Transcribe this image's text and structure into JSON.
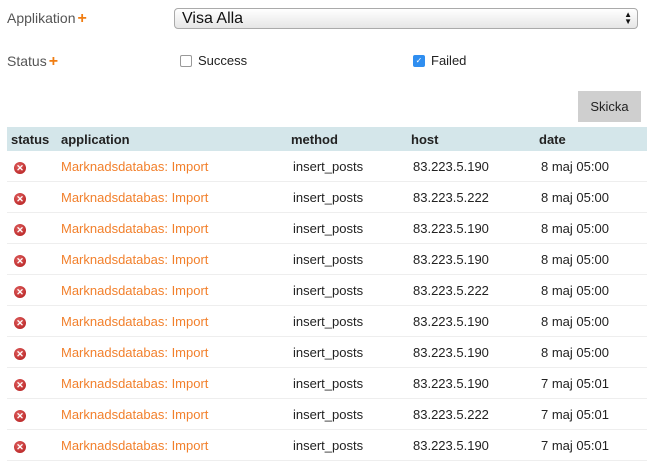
{
  "filters": {
    "application_label": "Applikation",
    "status_label": "Status",
    "plus": "+",
    "application_value": "Visa Alla",
    "success_label": "Success",
    "success_checked": false,
    "failed_label": "Failed",
    "failed_checked": true,
    "submit": "Skicka"
  },
  "table": {
    "headers": [
      "status",
      "application",
      "method",
      "host",
      "date"
    ],
    "rows": [
      {
        "status": "failed",
        "application": "Marknadsdatabas: Import",
        "method": "insert_posts",
        "host": "83.223.5.190",
        "date": "8 maj 05:00"
      },
      {
        "status": "failed",
        "application": "Marknadsdatabas: Import",
        "method": "insert_posts",
        "host": "83.223.5.222",
        "date": "8 maj 05:00"
      },
      {
        "status": "failed",
        "application": "Marknadsdatabas: Import",
        "method": "insert_posts",
        "host": "83.223.5.190",
        "date": "8 maj 05:00"
      },
      {
        "status": "failed",
        "application": "Marknadsdatabas: Import",
        "method": "insert_posts",
        "host": "83.223.5.190",
        "date": "8 maj 05:00"
      },
      {
        "status": "failed",
        "application": "Marknadsdatabas: Import",
        "method": "insert_posts",
        "host": "83.223.5.222",
        "date": "8 maj 05:00"
      },
      {
        "status": "failed",
        "application": "Marknadsdatabas: Import",
        "method": "insert_posts",
        "host": "83.223.5.190",
        "date": "8 maj 05:00"
      },
      {
        "status": "failed",
        "application": "Marknadsdatabas: Import",
        "method": "insert_posts",
        "host": "83.223.5.190",
        "date": "8 maj 05:00"
      },
      {
        "status": "failed",
        "application": "Marknadsdatabas: Import",
        "method": "insert_posts",
        "host": "83.223.5.190",
        "date": "7 maj 05:01"
      },
      {
        "status": "failed",
        "application": "Marknadsdatabas: Import",
        "method": "insert_posts",
        "host": "83.223.5.222",
        "date": "7 maj 05:01"
      },
      {
        "status": "failed",
        "application": "Marknadsdatabas: Import",
        "method": "insert_posts",
        "host": "83.223.5.190",
        "date": "7 maj 05:01"
      }
    ]
  },
  "colors": {
    "accent": "#f2802c",
    "header_bg": "#d4e6ea",
    "error": "#b01818"
  }
}
